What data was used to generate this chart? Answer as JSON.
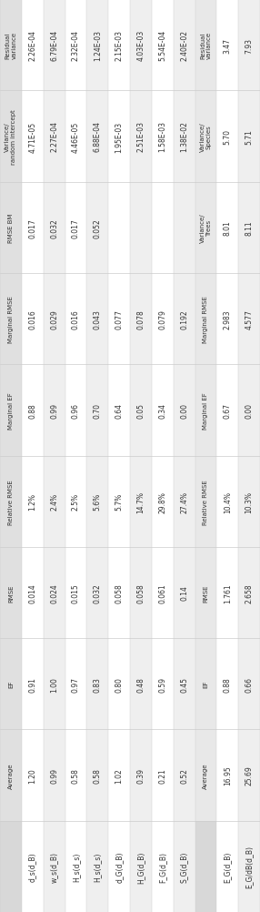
{
  "fig_width": 2.86,
  "fig_height": 10.03,
  "dpi": 100,
  "color_header": "#e8e8e8",
  "color_sep_header": "#d0d0d0",
  "color_row_white": "#ffffff",
  "color_row_light": "#efefef",
  "grid_color": "#cccccc",
  "text_color": "#333333",
  "stat_rows": [
    "row_label",
    "Average",
    "EF",
    "RMSE",
    "Relative RMSE",
    "Marginal EF",
    "Marginal RMSE",
    "RMSE BM",
    "Variance/\nrandom intercept",
    "Residual\nvariance"
  ],
  "stat_rows_sec2": [
    "row_label",
    "Average",
    "EF",
    "RMSE",
    "Relative RMSE",
    "Marginal EF",
    "Marginal RMSE",
    "Variance/\nTrees",
    "Variance/\nSpecies",
    "Residual\nvariance"
  ],
  "sec1_cols": [
    {
      "label": "d_s(d_B)",
      "Average": "1.20",
      "EF": "0.91",
      "RMSE": "0.014",
      "Relative RMSE": "1.2%",
      "Marginal EF": "0.88",
      "Marginal RMSE": "0.016",
      "RMSE BM": "0.017",
      "Variance/\nrandom intercept": "4.71E-05",
      "Residual\nvariance": "2.26E-04"
    },
    {
      "label": "w_s(d_B)",
      "Average": "0.99",
      "EF": "1.00",
      "RMSE": "0.024",
      "Relative RMSE": "2.4%",
      "Marginal EF": "0.99",
      "Marginal RMSE": "0.029",
      "RMSE BM": "0.032",
      "Variance/\nrandom intercept": "2.27E-04",
      "Residual\nvariance": "6.79E-04"
    },
    {
      "label": "H_s(d_s)",
      "Average": "0.58",
      "EF": "0.97",
      "RMSE": "0.015",
      "Relative RMSE": "2.5%",
      "Marginal EF": "0.96",
      "Marginal RMSE": "0.016",
      "RMSE BM": "0.017",
      "Variance/\nrandom intercept": "4.46E-05",
      "Residual\nvariance": "2.32E-04"
    },
    {
      "label": "H_s(d_s)",
      "Average": "0.58",
      "EF": "0.83",
      "RMSE": "0.032",
      "Relative RMSE": "5.6%",
      "Marginal EF": "0.70",
      "Marginal RMSE": "0.043",
      "RMSE BM": "0.052",
      "Variance/\nrandom intercept": "6.88E-04",
      "Residual\nvariance": "1.24E-03"
    },
    {
      "label": "d_G(d_B)",
      "Average": "1.02",
      "EF": "0.80",
      "RMSE": "0.058",
      "Relative RMSE": "5.7%",
      "Marginal EF": "0.64",
      "Marginal RMSE": "0.077",
      "RMSE BM": "",
      "Variance/\nrandom intercept": "1.95E-03",
      "Residual\nvariance": "2.15E-03"
    },
    {
      "label": "H_G(d_B)",
      "Average": "0.39",
      "EF": "0.48",
      "RMSE": "0.058",
      "Relative RMSE": "14.7%",
      "Marginal EF": "0.05",
      "Marginal RMSE": "0.078",
      "RMSE BM": "",
      "Variance/\nrandom intercept": "2.51E-03",
      "Residual\nvariance": "4.03E-03"
    },
    {
      "label": "F_G(d_B)",
      "Average": "0.21",
      "EF": "0.59",
      "RMSE": "0.061",
      "Relative RMSE": "29.8%",
      "Marginal EF": "0.34",
      "Marginal RMSE": "0.079",
      "RMSE BM": "",
      "Variance/\nrandom intercept": "1.58E-03",
      "Residual\nvariance": "5.54E-04"
    },
    {
      "label": "S_G(d_B)",
      "Average": "0.52",
      "EF": "0.45",
      "RMSE": "0.14",
      "Relative RMSE": "27.4%",
      "Marginal EF": "0.00",
      "Marginal RMSE": "0.192",
      "RMSE BM": "",
      "Variance/\nrandom intercept": "1.38E-02",
      "Residual\nvariance": "2.40E-02"
    }
  ],
  "sec2_cols": [
    {
      "label": "E_G(d_B)",
      "Average": "16.95",
      "EF": "0.88",
      "RMSE": "1.761",
      "Relative RMSE": "10.4%",
      "Marginal EF": "0.67",
      "Marginal RMSE": "2.983",
      "Variance/\nTrees": "8.01",
      "Variance/\nSpecies": "5.70",
      "Residual\nvariance": "3.47"
    },
    {
      "label": "E_G/dB(d_B)",
      "Average": "25.69",
      "EF": "0.66",
      "RMSE": "2.658",
      "Relative RMSE": "10.3%",
      "Marginal EF": "0.00",
      "Marginal RMSE": "4.577",
      "Variance/\nTrees": "8.11",
      "Variance/\nSpecies": "5.71",
      "Residual\nvariance": "7.93"
    }
  ],
  "sec1_label_texts": [
    "d_s(d_B)",
    "w_s(d_B)",
    "H_s(d_s)",
    "H_s(d_s)",
    "d_G(d_B)",
    "H_G(d_B)",
    "F_G(d_B)",
    "S_G(d_B)"
  ],
  "sec2_label_texts": [
    "E_G(d_B)",
    "E_G/dB(d_B)"
  ],
  "n_stat_rows": 10
}
